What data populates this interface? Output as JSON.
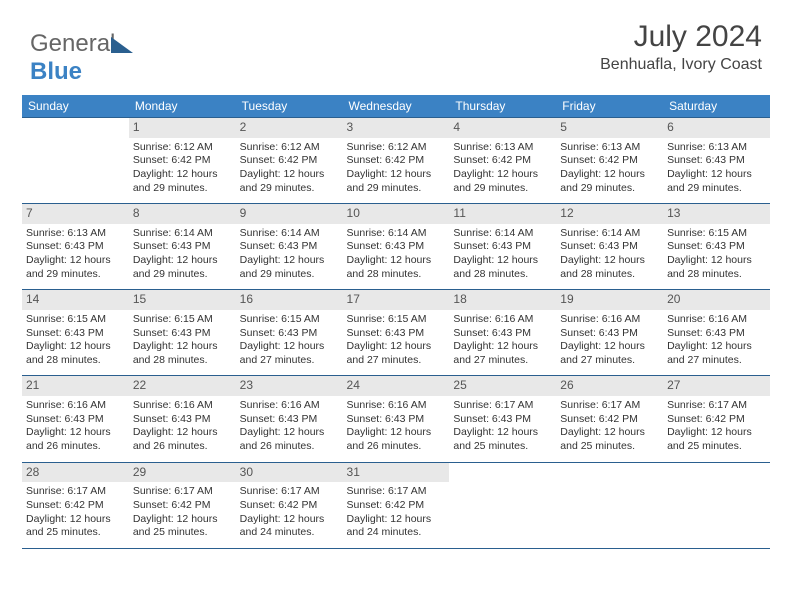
{
  "brand": {
    "part1": "General",
    "part2": "Blue"
  },
  "title": "July 2024",
  "location": "Benhuafla, Ivory Coast",
  "colors": {
    "header_bg": "#3b82c4",
    "header_text": "#ffffff",
    "daynum_bg": "#e8e8e8",
    "daynum_text": "#555555",
    "border": "#2a5f8f",
    "body_text": "#333333"
  },
  "weekdays": [
    "Sunday",
    "Monday",
    "Tuesday",
    "Wednesday",
    "Thursday",
    "Friday",
    "Saturday"
  ],
  "weeks": [
    [
      null,
      {
        "n": "1",
        "sr": "6:12 AM",
        "ss": "6:42 PM",
        "dl": "12 hours and 29 minutes."
      },
      {
        "n": "2",
        "sr": "6:12 AM",
        "ss": "6:42 PM",
        "dl": "12 hours and 29 minutes."
      },
      {
        "n": "3",
        "sr": "6:12 AM",
        "ss": "6:42 PM",
        "dl": "12 hours and 29 minutes."
      },
      {
        "n": "4",
        "sr": "6:13 AM",
        "ss": "6:42 PM",
        "dl": "12 hours and 29 minutes."
      },
      {
        "n": "5",
        "sr": "6:13 AM",
        "ss": "6:42 PM",
        "dl": "12 hours and 29 minutes."
      },
      {
        "n": "6",
        "sr": "6:13 AM",
        "ss": "6:43 PM",
        "dl": "12 hours and 29 minutes."
      }
    ],
    [
      {
        "n": "7",
        "sr": "6:13 AM",
        "ss": "6:43 PM",
        "dl": "12 hours and 29 minutes."
      },
      {
        "n": "8",
        "sr": "6:14 AM",
        "ss": "6:43 PM",
        "dl": "12 hours and 29 minutes."
      },
      {
        "n": "9",
        "sr": "6:14 AM",
        "ss": "6:43 PM",
        "dl": "12 hours and 29 minutes."
      },
      {
        "n": "10",
        "sr": "6:14 AM",
        "ss": "6:43 PM",
        "dl": "12 hours and 28 minutes."
      },
      {
        "n": "11",
        "sr": "6:14 AM",
        "ss": "6:43 PM",
        "dl": "12 hours and 28 minutes."
      },
      {
        "n": "12",
        "sr": "6:14 AM",
        "ss": "6:43 PM",
        "dl": "12 hours and 28 minutes."
      },
      {
        "n": "13",
        "sr": "6:15 AM",
        "ss": "6:43 PM",
        "dl": "12 hours and 28 minutes."
      }
    ],
    [
      {
        "n": "14",
        "sr": "6:15 AM",
        "ss": "6:43 PM",
        "dl": "12 hours and 28 minutes."
      },
      {
        "n": "15",
        "sr": "6:15 AM",
        "ss": "6:43 PM",
        "dl": "12 hours and 28 minutes."
      },
      {
        "n": "16",
        "sr": "6:15 AM",
        "ss": "6:43 PM",
        "dl": "12 hours and 27 minutes."
      },
      {
        "n": "17",
        "sr": "6:15 AM",
        "ss": "6:43 PM",
        "dl": "12 hours and 27 minutes."
      },
      {
        "n": "18",
        "sr": "6:16 AM",
        "ss": "6:43 PM",
        "dl": "12 hours and 27 minutes."
      },
      {
        "n": "19",
        "sr": "6:16 AM",
        "ss": "6:43 PM",
        "dl": "12 hours and 27 minutes."
      },
      {
        "n": "20",
        "sr": "6:16 AM",
        "ss": "6:43 PM",
        "dl": "12 hours and 27 minutes."
      }
    ],
    [
      {
        "n": "21",
        "sr": "6:16 AM",
        "ss": "6:43 PM",
        "dl": "12 hours and 26 minutes."
      },
      {
        "n": "22",
        "sr": "6:16 AM",
        "ss": "6:43 PM",
        "dl": "12 hours and 26 minutes."
      },
      {
        "n": "23",
        "sr": "6:16 AM",
        "ss": "6:43 PM",
        "dl": "12 hours and 26 minutes."
      },
      {
        "n": "24",
        "sr": "6:16 AM",
        "ss": "6:43 PM",
        "dl": "12 hours and 26 minutes."
      },
      {
        "n": "25",
        "sr": "6:17 AM",
        "ss": "6:43 PM",
        "dl": "12 hours and 25 minutes."
      },
      {
        "n": "26",
        "sr": "6:17 AM",
        "ss": "6:42 PM",
        "dl": "12 hours and 25 minutes."
      },
      {
        "n": "27",
        "sr": "6:17 AM",
        "ss": "6:42 PM",
        "dl": "12 hours and 25 minutes."
      }
    ],
    [
      {
        "n": "28",
        "sr": "6:17 AM",
        "ss": "6:42 PM",
        "dl": "12 hours and 25 minutes."
      },
      {
        "n": "29",
        "sr": "6:17 AM",
        "ss": "6:42 PM",
        "dl": "12 hours and 25 minutes."
      },
      {
        "n": "30",
        "sr": "6:17 AM",
        "ss": "6:42 PM",
        "dl": "12 hours and 24 minutes."
      },
      {
        "n": "31",
        "sr": "6:17 AM",
        "ss": "6:42 PM",
        "dl": "12 hours and 24 minutes."
      },
      null,
      null,
      null
    ]
  ],
  "labels": {
    "sunrise": "Sunrise:",
    "sunset": "Sunset:",
    "daylight": "Daylight:"
  }
}
